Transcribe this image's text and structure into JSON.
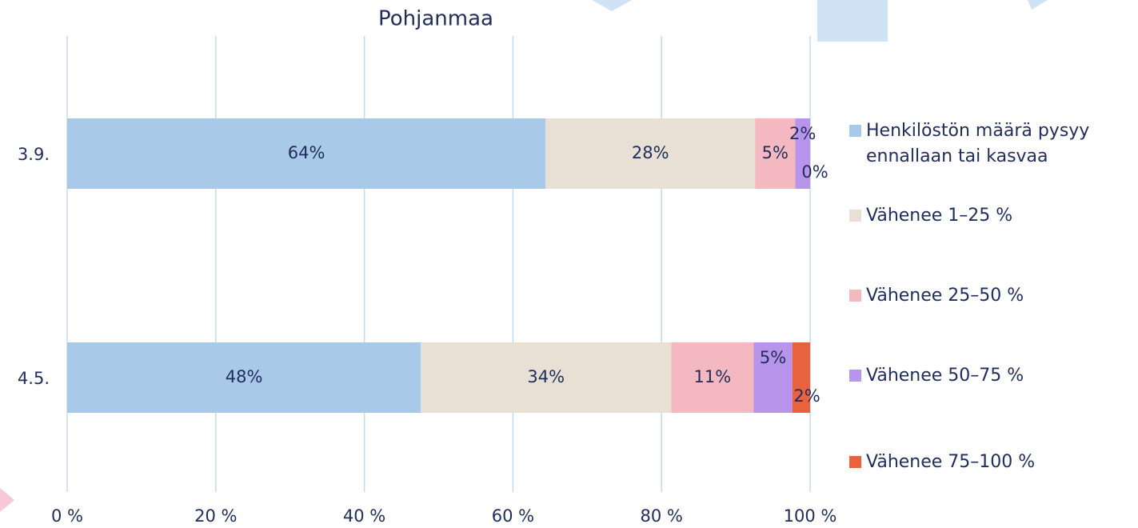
{
  "chart_data": {
    "type": "stacked-bar-horizontal",
    "title": "Pohjanmaa",
    "categories": [
      "3.9.",
      "4.5."
    ],
    "series": [
      {
        "name": "Henkilöstön määrä pysyy ennallaan tai kasvaa",
        "color": "#a9c9e8",
        "values": [
          64.4,
          47.6
        ],
        "value_labels": [
          "64%",
          "48%"
        ]
      },
      {
        "name": "Vähenee 1–25 %",
        "color": "#e8e0d4",
        "values": [
          28.2,
          33.7
        ],
        "value_labels": [
          "28%",
          "34%"
        ]
      },
      {
        "name": "Vähenee 25–50 %",
        "color": "#f3b8c0",
        "values": [
          5.4,
          11.1
        ],
        "value_labels": [
          "5%",
          "11%"
        ]
      },
      {
        "name": "Vähenee 50–75 %",
        "color": "#b894ea",
        "values": [
          2.0,
          5.2
        ],
        "value_labels": [
          "2%",
          "5%"
        ]
      },
      {
        "name": "Vähenee 75–100 %",
        "color": "#e8623e",
        "values": [
          0.0,
          2.4
        ],
        "value_labels": [
          "0%",
          "2%"
        ]
      }
    ],
    "xlim": [
      0,
      100
    ],
    "xticks": [
      {
        "value": 0,
        "label": "0 %"
      },
      {
        "value": 20,
        "label": "20 %"
      },
      {
        "value": 40,
        "label": "40 %"
      },
      {
        "value": 60,
        "label": "60 %"
      },
      {
        "value": 80,
        "label": "80 %"
      },
      {
        "value": 100,
        "label": "100 %"
      }
    ],
    "grid": true,
    "legend": "right"
  }
}
